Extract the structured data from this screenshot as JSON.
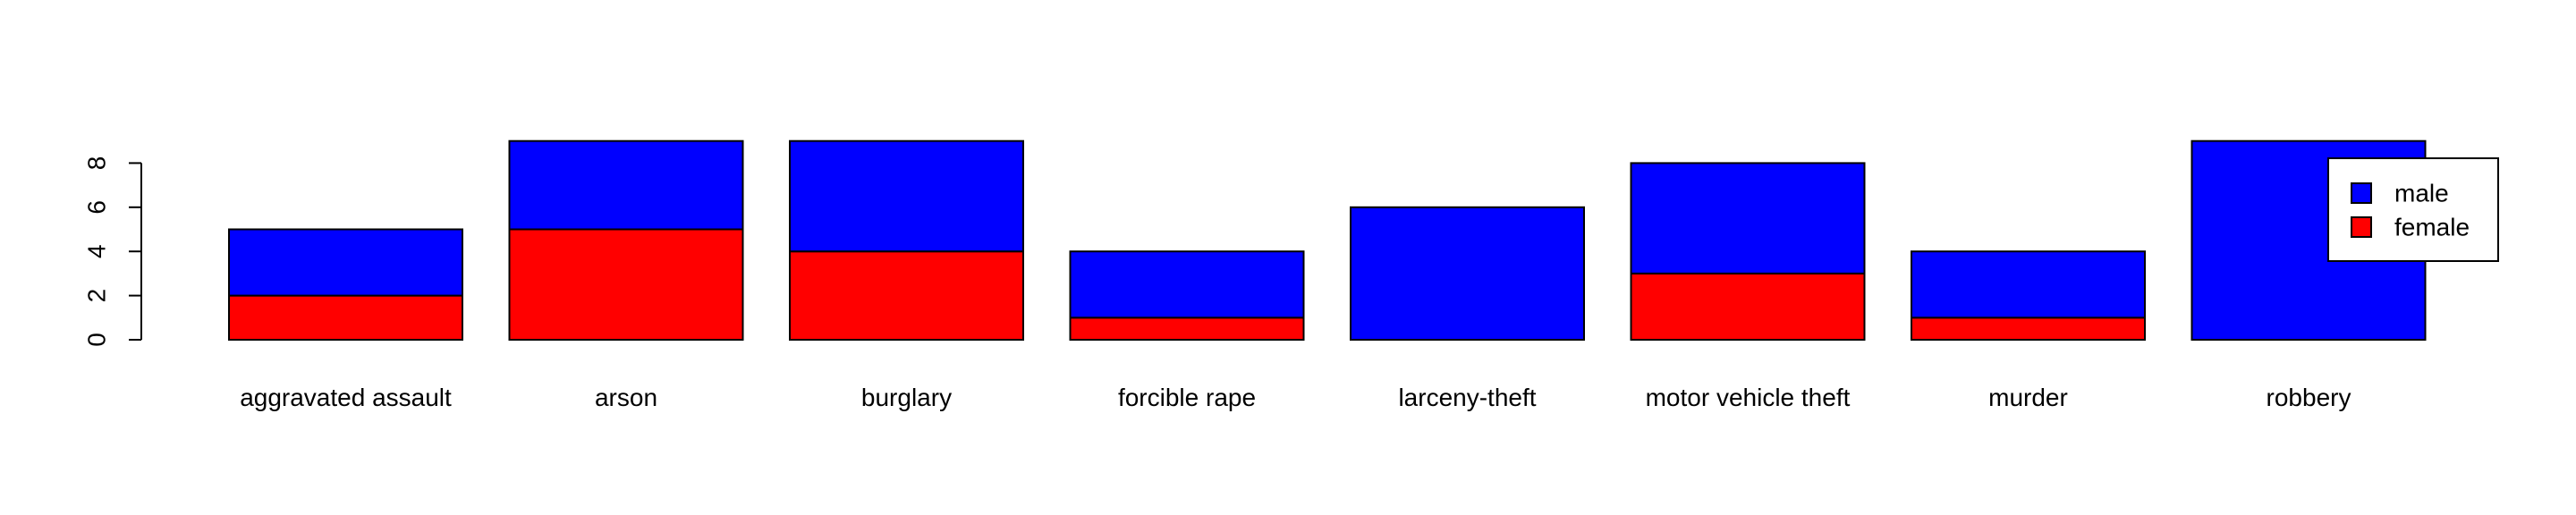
{
  "chart_data": {
    "type": "bar",
    "stacked": true,
    "categories": [
      "aggravated assault",
      "arson",
      "burglary",
      "forcible rape",
      "larceny-theft",
      "motor vehicle theft",
      "murder",
      "robbery"
    ],
    "series": [
      {
        "name": "female",
        "color": "#FF0000",
        "values": [
          2,
          5,
          4,
          1,
          0,
          3,
          1,
          0
        ]
      },
      {
        "name": "male",
        "color": "#0000FF",
        "values": [
          3,
          4,
          5,
          3,
          6,
          5,
          3,
          9
        ]
      }
    ],
    "ylim": [
      0,
      9
    ],
    "yticks": [
      "0",
      "2",
      "4",
      "6",
      "8"
    ],
    "grid": false,
    "legend": {
      "position": "top-right",
      "entries": [
        "male",
        "female"
      ]
    },
    "title": "",
    "xlabel": "",
    "ylabel": ""
  }
}
